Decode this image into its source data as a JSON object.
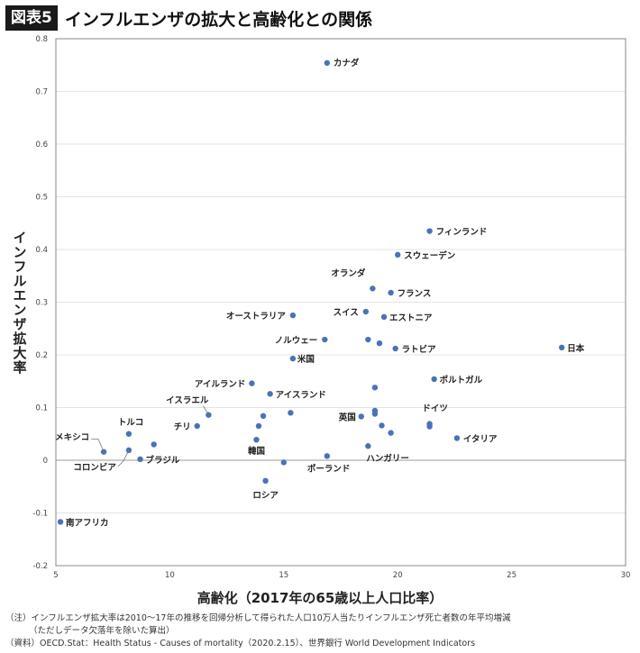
{
  "header": {
    "badge": "図表5",
    "title": "インフルエンザの拡大と高齢化との関係"
  },
  "notes": [
    "（注）インフルエンザ拡大率は2010～17年の推移を回帰分析して得られた人口10万人当たりインフルエンザ死亡者数の年平均増減",
    "（ただしデータ欠落年を除いた算出）",
    "（資料）OECD.Stat：Health Status - Causes of mortality（2020.2.15）、世界銀行 World Development Indicators"
  ],
  "colors": {
    "point": "#4a72b8",
    "axis": "#888888",
    "grid": "#e3e3e3",
    "zero_line": "#9a9a9a"
  },
  "chart_data": {
    "type": "scatter",
    "title": "インフルエンザの拡大と高齢化との関係",
    "xlabel": "高齢化（2017年の65歳以上人口比率）",
    "ylabel": "インフルエンザ拡大率",
    "xlim": [
      5,
      30
    ],
    "ylim": [
      -0.2,
      0.8
    ],
    "xticks": [
      5,
      10,
      15,
      20,
      25,
      30
    ],
    "yticks": [
      -0.2,
      -0.1,
      0,
      0.1,
      0.2,
      0.3,
      0.4,
      0.5,
      0.6,
      0.7,
      0.8
    ],
    "grid": "horizontal",
    "points": [
      {
        "label": "カナダ",
        "x": 16.9,
        "y": 0.754
      },
      {
        "label": "フィンランド",
        "x": 21.4,
        "y": 0.435
      },
      {
        "label": "スウェーデン",
        "x": 20.0,
        "y": 0.39
      },
      {
        "label": "オランダ",
        "x": 18.9,
        "y": 0.326
      },
      {
        "label": "フランス",
        "x": 19.7,
        "y": 0.318
      },
      {
        "label": "オーストラリア",
        "x": 15.4,
        "y": 0.275
      },
      {
        "label": "スイス",
        "x": 18.6,
        "y": 0.282
      },
      {
        "label": "エストニア",
        "x": 19.4,
        "y": 0.272
      },
      {
        "label": "ノルウェー",
        "x": 16.8,
        "y": 0.229
      },
      {
        "label": "",
        "x": 18.7,
        "y": 0.229
      },
      {
        "label": "",
        "x": 19.2,
        "y": 0.222
      },
      {
        "label": "ラトビア",
        "x": 19.9,
        "y": 0.212
      },
      {
        "label": "日本",
        "x": 27.2,
        "y": 0.214
      },
      {
        "label": "米国",
        "x": 15.4,
        "y": 0.193
      },
      {
        "label": "ポルトガル",
        "x": 21.6,
        "y": 0.154
      },
      {
        "label": "アイルランド",
        "x": 13.6,
        "y": 0.146
      },
      {
        "label": "",
        "x": 19.0,
        "y": 0.138
      },
      {
        "label": "アイスランド",
        "x": 14.4,
        "y": 0.126
      },
      {
        "label": "",
        "x": 19.0,
        "y": 0.094
      },
      {
        "label": "",
        "x": 15.3,
        "y": 0.09
      },
      {
        "label": "",
        "x": 19.0,
        "y": 0.088
      },
      {
        "label": "イスラエル",
        "x": 11.7,
        "y": 0.086
      },
      {
        "label": "英国",
        "x": 18.4,
        "y": 0.083
      },
      {
        "label": "",
        "x": 14.1,
        "y": 0.084
      },
      {
        "label": "ドイツ",
        "x": 21.4,
        "y": 0.069
      },
      {
        "label": "",
        "x": 21.4,
        "y": 0.064
      },
      {
        "label": "",
        "x": 19.3,
        "y": 0.066
      },
      {
        "label": "チリ",
        "x": 11.2,
        "y": 0.065
      },
      {
        "label": "",
        "x": 13.9,
        "y": 0.065
      },
      {
        "label": "",
        "x": 19.7,
        "y": 0.052
      },
      {
        "label": "トルコ",
        "x": 8.2,
        "y": 0.05
      },
      {
        "label": "イタリア",
        "x": 22.6,
        "y": 0.042
      },
      {
        "label": "",
        "x": 9.3,
        "y": 0.03
      },
      {
        "label": "ハンガリー",
        "x": 18.7,
        "y": 0.027
      },
      {
        "label": "韓国",
        "x": 13.8,
        "y": 0.039
      },
      {
        "label": "メキシコ",
        "x": 7.1,
        "y": 0.016
      },
      {
        "label": "コロンビア",
        "x": 8.2,
        "y": 0.019
      },
      {
        "label": "ブラジル",
        "x": 8.7,
        "y": 0.002
      },
      {
        "label": "ポーランド",
        "x": 16.9,
        "y": 0.008
      },
      {
        "label": "",
        "x": 15.0,
        "y": -0.004
      },
      {
        "label": "ロシア",
        "x": 14.2,
        "y": -0.039
      },
      {
        "label": "南アフリカ",
        "x": 5.2,
        "y": -0.117
      }
    ]
  }
}
